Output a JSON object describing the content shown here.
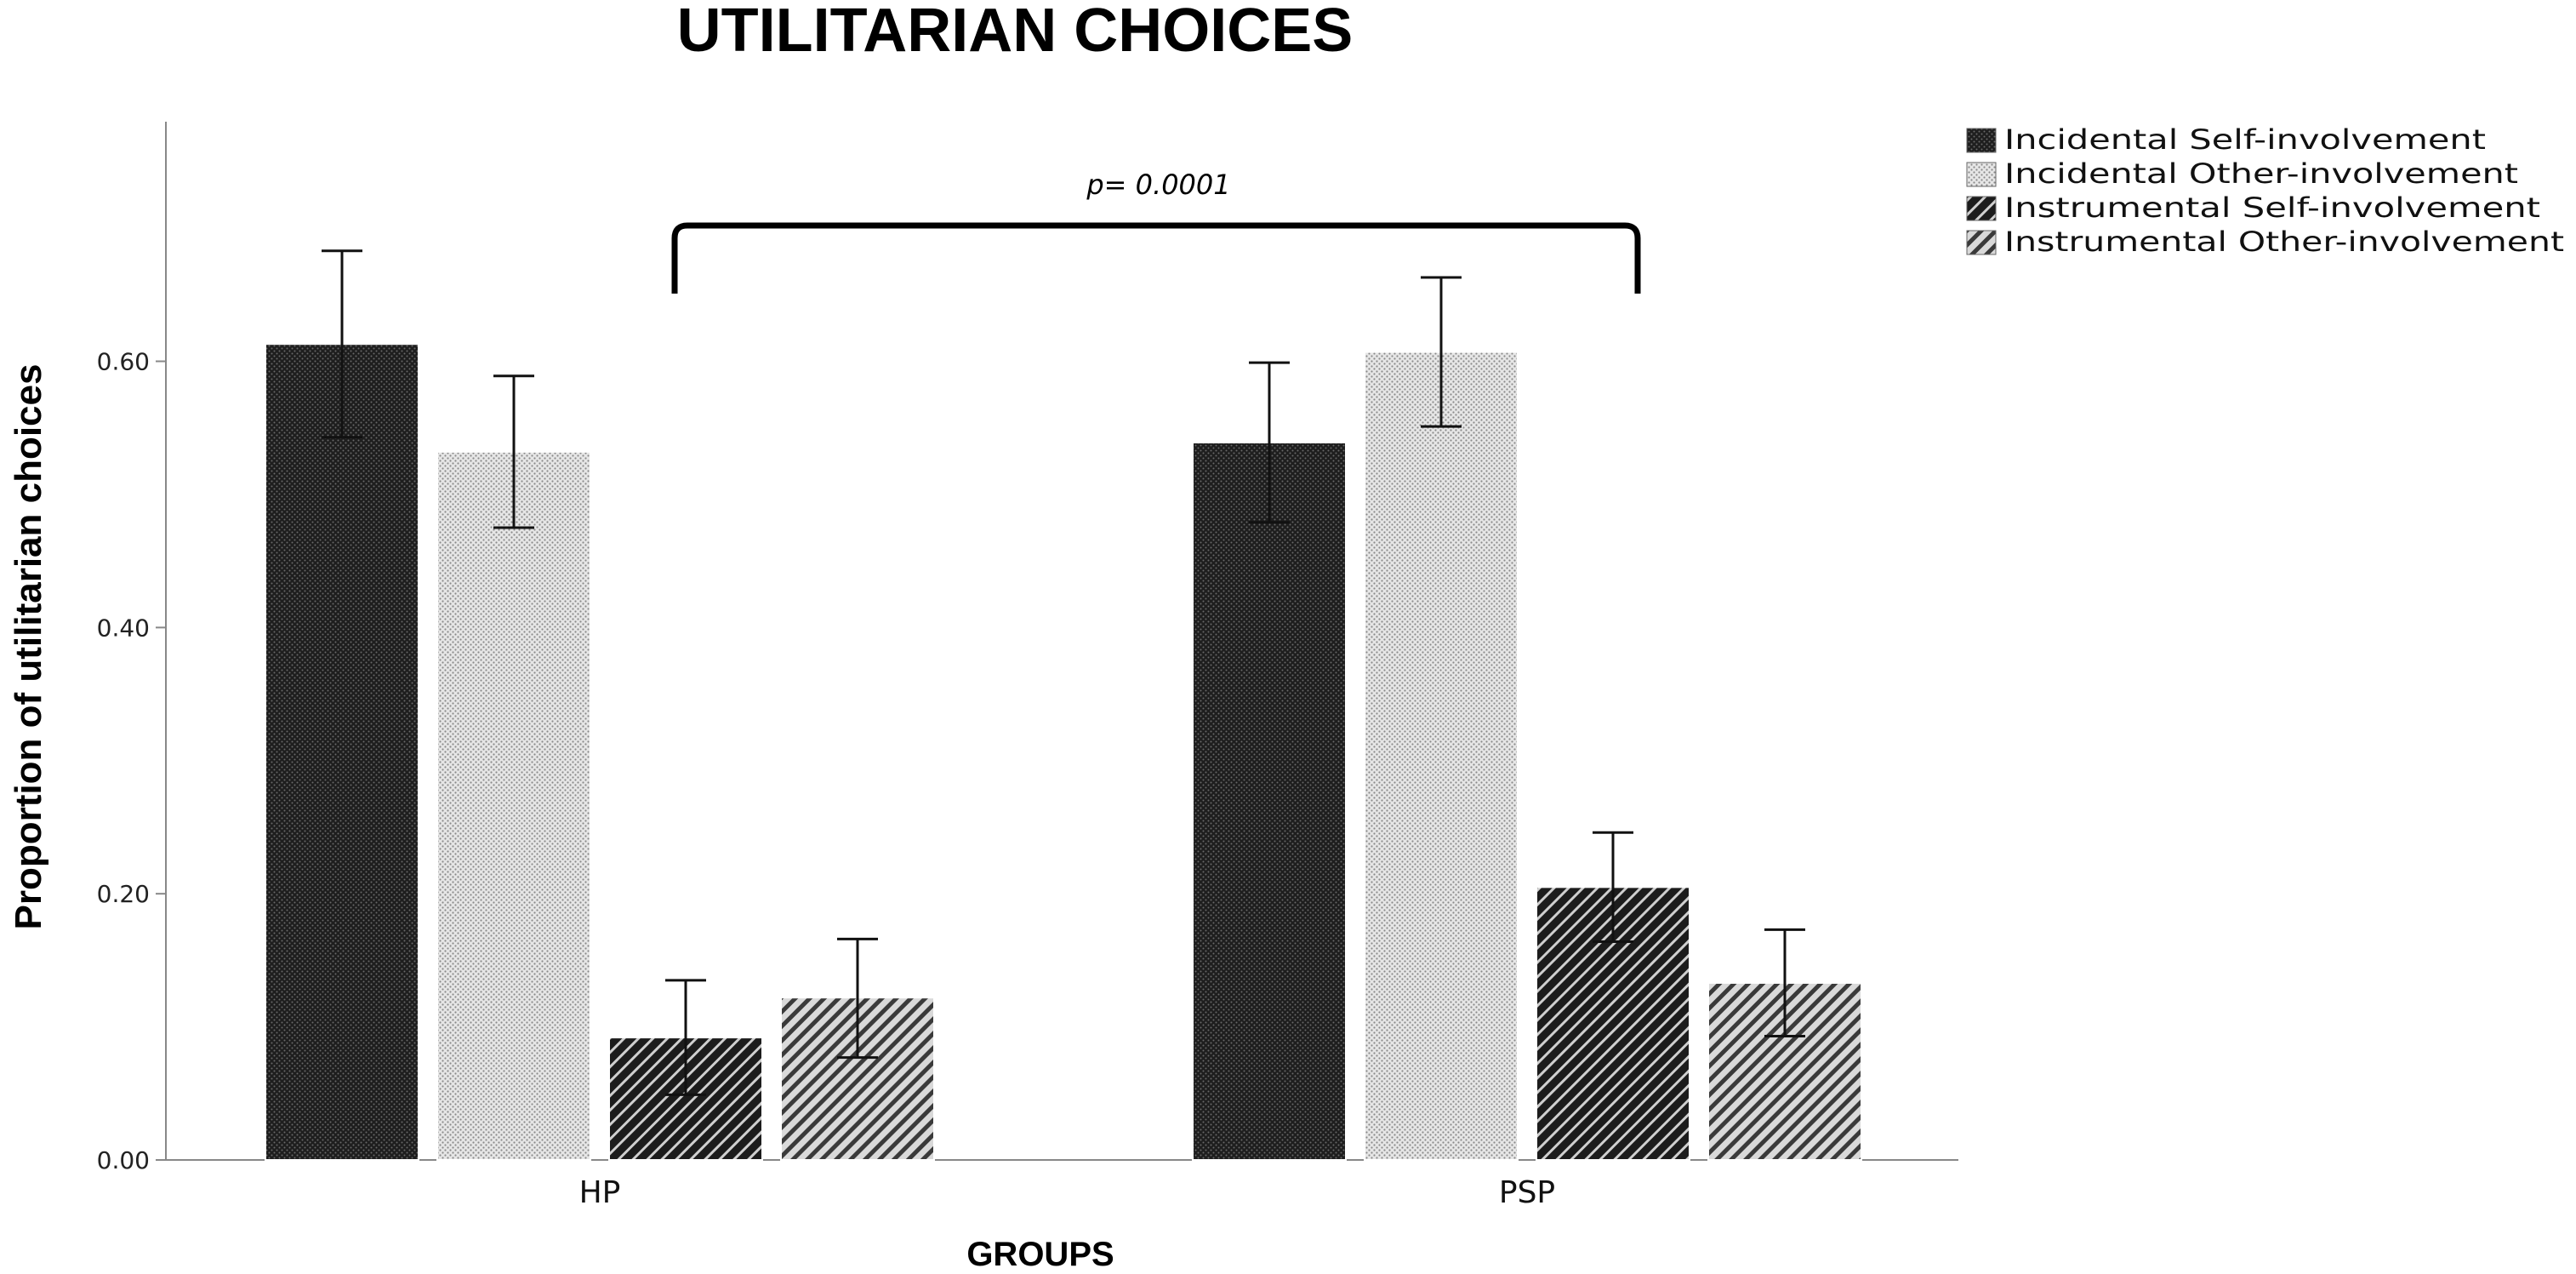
{
  "chart_data": {
    "type": "bar",
    "title": "UTILITARIAN CHOICES",
    "xlabel": "GROUPS",
    "ylabel": "Proportion of utilitarian choices",
    "categories": [
      "HP",
      "PSP"
    ],
    "ylim": [
      0,
      0.78
    ],
    "yticks": [
      "0.00",
      "0.20",
      "0.40",
      "0.60"
    ],
    "ytick_values": [
      0,
      0.2,
      0.4,
      0.6
    ],
    "grid": false,
    "legend_position": "top-right",
    "series": [
      {
        "name": "Incidental Self-involvement",
        "pattern": "dots-dark",
        "values": [
          0.613,
          0.539
        ],
        "err_low": [
          0.543,
          0.479
        ],
        "err_high": [
          0.683,
          0.599
        ]
      },
      {
        "name": "Incidental Other-involvement",
        "pattern": "dots-light",
        "values": [
          0.532,
          0.607
        ],
        "err_low": [
          0.475,
          0.551
        ],
        "err_high": [
          0.589,
          0.663
        ]
      },
      {
        "name": "Instrumental Self-involvement",
        "pattern": "hatch-dark",
        "values": [
          0.092,
          0.205
        ],
        "err_low": [
          0.049,
          0.164
        ],
        "err_high": [
          0.135,
          0.246
        ]
      },
      {
        "name": "Instrumental Other-involvement",
        "pattern": "hatch-light",
        "values": [
          0.122,
          0.133
        ],
        "err_low": [
          0.077,
          0.093
        ],
        "err_high": [
          0.166,
          0.173
        ]
      }
    ],
    "annotations": [
      {
        "text": "p= 0.0001",
        "type": "bracket"
      }
    ]
  }
}
